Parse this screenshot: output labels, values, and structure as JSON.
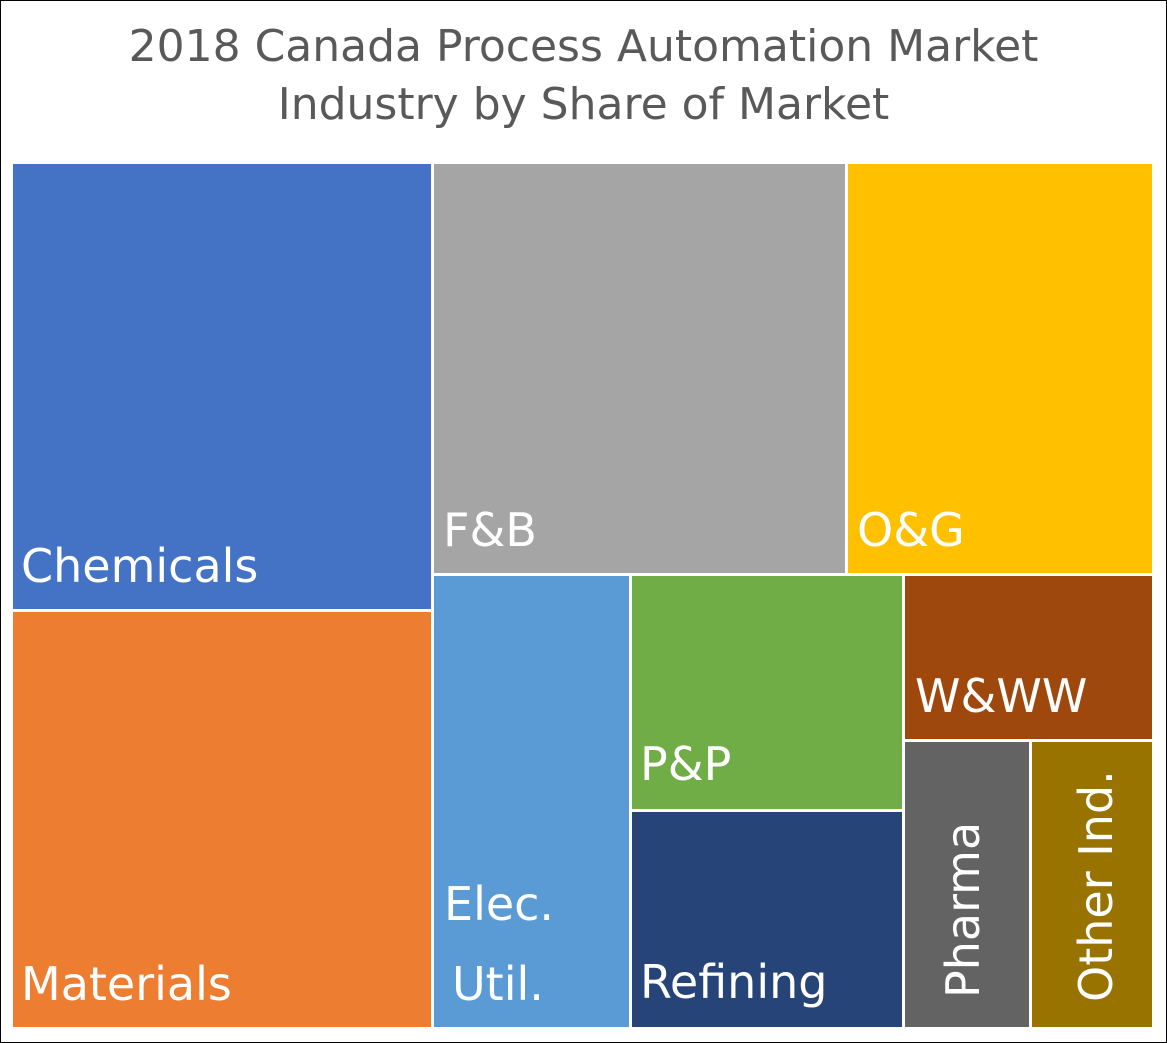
{
  "chart_data": {
    "type": "treemap",
    "title_lines": [
      "2018 Canada Process Automation Market",
      "Industry by Share of Market"
    ],
    "categories": [
      "Chemicals",
      "Materials",
      "F&B",
      "O&G",
      "Elec. Util.",
      "P&P",
      "Refining",
      "W&WW",
      "Pharma",
      "Other Ind."
    ],
    "colors": {
      "Chemicals": "#4472C4",
      "Materials": "#ED7D31",
      "F&B": "#A5A5A5",
      "O&G": "#FFC000",
      "Elec. Util.": "#5B9BD5",
      "P&P": "#70AD47",
      "Refining": "#264478",
      "W&WW": "#9E480E",
      "Pharma": "#636363",
      "Other Ind.": "#997300"
    },
    "labels": {
      "chemicals": "Chemicals",
      "materials": "Materials",
      "fb": "F&B",
      "og": "O&G",
      "elec_line1": "Elec.",
      "elec_line2": "Util.",
      "pp": "P&P",
      "refining": "Refining",
      "www": "W&WW",
      "pharma": "Pharma",
      "other": "Other Ind."
    }
  }
}
